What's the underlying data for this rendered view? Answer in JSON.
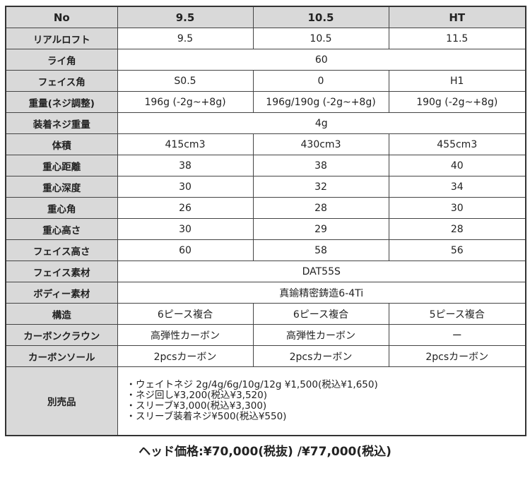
{
  "header": [
    "No",
    "9.5",
    "10.5",
    "HT"
  ],
  "rows": [
    {
      "label": "リアルロフト",
      "values": [
        "9.5",
        "10.5",
        "11.5"
      ]
    },
    {
      "label": "ライ角",
      "merged": "60"
    },
    {
      "label": "フェイス角",
      "values": [
        "S0.5",
        "0",
        "H1"
      ]
    },
    {
      "label": "重量(ネジ調整)",
      "values": [
        "196g (-2g~+8g)",
        "196g/190g (-2g~+8g)",
        "190g (-2g~+8g)"
      ]
    },
    {
      "label": "装着ネジ重量",
      "merged": "4g"
    },
    {
      "label": "体積",
      "values": [
        "415cm3",
        "430cm3",
        "455cm3"
      ]
    },
    {
      "label": "重心距離",
      "values": [
        "38",
        "38",
        "40"
      ]
    },
    {
      "label": "重心深度",
      "values": [
        "30",
        "32",
        "34"
      ]
    },
    {
      "label": "重心角",
      "values": [
        "26",
        "28",
        "30"
      ]
    },
    {
      "label": "重心高さ",
      "values": [
        "30",
        "29",
        "28"
      ]
    },
    {
      "label": "フェイス高さ",
      "values": [
        "60",
        "58",
        "56"
      ]
    },
    {
      "label": "フェイス素材",
      "merged": "DAT55S"
    },
    {
      "label": "ボディー素材",
      "merged": "真鍮精密鋳造6-4Ti"
    },
    {
      "label": "構造",
      "values": [
        "6ピース複合",
        "6ピース複合",
        "5ピース複合"
      ]
    },
    {
      "label": "カーボンクラウン",
      "values": [
        "高弾性カーボン",
        "高弾性カーボン",
        "ー"
      ]
    },
    {
      "label": "カーボンソール",
      "values": [
        "2pcsカーボン",
        "2pcsカーボン",
        "2pcsカーボン"
      ]
    }
  ],
  "accessories": {
    "label": "別売品",
    "items": [
      "・ウェイトネジ  2g/4g/6g/10g/12g  ¥1,500(税込¥1,650)",
      "・ネジ回し¥3,200(税込¥3,520)",
      "・スリーブ¥3,000(税込¥3,300)",
      "・スリーブ装着ネジ¥500(税込¥550)"
    ]
  },
  "price": "ヘッド価格:¥70,000(税抜) /¥77,000(税込)"
}
